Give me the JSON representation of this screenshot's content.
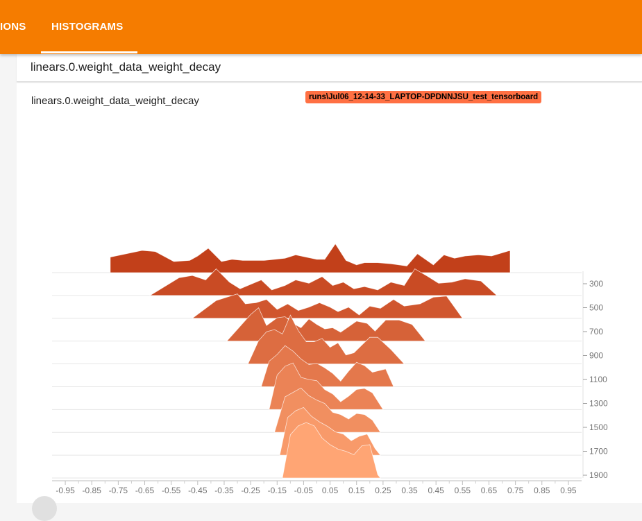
{
  "tabs": [
    {
      "label": "IONS"
    },
    {
      "label": "HISTOGRAMS"
    }
  ],
  "tag_header": {
    "text": "linears.0.weight_data_weight_decay"
  },
  "card": {
    "title": "linears.0.weight_data_weight_decay",
    "run_label": "runs\\Jul06_12-14-33_LAPTOP-DPDNNJSU_test_tensorboard"
  },
  "colors": {
    "topbar": "#f57c00",
    "badge": "#ff7043",
    "oldest_step": "#c2401a",
    "newest_step": "#ffa574"
  },
  "chart_data": {
    "type": "area",
    "mode": "offset",
    "x_ticks": [
      -0.95,
      -0.85,
      -0.75,
      -0.65,
      -0.55,
      -0.45,
      -0.35,
      -0.25,
      -0.15,
      -0.05,
      0.05,
      0.15,
      0.25,
      0.35,
      0.45,
      0.55,
      0.65,
      0.75,
      0.85,
      0.95
    ],
    "x_tick_labels": [
      "-0.95",
      "-0.85",
      "-0.75",
      "-0.65",
      "-0.55",
      "-0.45",
      "-0.35",
      "-0.25",
      "-0.15",
      "-0.05",
      "0.05",
      "0.15",
      "0.25",
      "0.35",
      "0.45",
      "0.55",
      "0.65",
      "0.75",
      "0.85",
      "0.95"
    ],
    "xlim": [
      -1.0,
      1.0
    ],
    "step_ticks": [
      300,
      500,
      700,
      900,
      1100,
      1300,
      1500,
      1700,
      1900
    ],
    "step_tick_labels": [
      "300",
      "500",
      "700",
      "900",
      "1100",
      "1300",
      "1500",
      "1700",
      "1900"
    ],
    "series": [
      {
        "step": 100,
        "points": [
          [
            -0.78,
            0
          ],
          [
            -0.78,
            0.14
          ],
          [
            -0.66,
            0.2
          ],
          [
            -0.61,
            0.19
          ],
          [
            -0.54,
            0.1
          ],
          [
            -0.48,
            0.11
          ],
          [
            -0.45,
            0.15
          ],
          [
            -0.41,
            0.22
          ],
          [
            -0.36,
            0.1
          ],
          [
            -0.32,
            0.12
          ],
          [
            -0.28,
            0.11
          ],
          [
            -0.2,
            0.11
          ],
          [
            -0.12,
            0.13
          ],
          [
            -0.08,
            0.16
          ],
          [
            -0.04,
            0.14
          ],
          [
            0,
            0.12
          ],
          [
            0.03,
            0.12
          ],
          [
            0.07,
            0.26
          ],
          [
            0.11,
            0.11
          ],
          [
            0.15,
            0.07
          ],
          [
            0.18,
            0.09
          ],
          [
            0.23,
            0.09
          ],
          [
            0.28,
            0.08
          ],
          [
            0.34,
            0.06
          ],
          [
            0.38,
            0.17
          ],
          [
            0.44,
            0.07
          ],
          [
            0.48,
            0.16
          ],
          [
            0.52,
            0.13
          ],
          [
            0.56,
            0.15
          ],
          [
            0.61,
            0.16
          ],
          [
            0.66,
            0.15
          ],
          [
            0.73,
            0.2
          ],
          [
            0.73,
            0
          ]
        ]
      },
      {
        "step": 300,
        "points": [
          [
            -0.63,
            0
          ],
          [
            -0.52,
            0.16
          ],
          [
            -0.47,
            0.18
          ],
          [
            -0.42,
            0.14
          ],
          [
            -0.38,
            0.24
          ],
          [
            -0.33,
            0.12
          ],
          [
            -0.29,
            0.06
          ],
          [
            -0.25,
            0.1
          ],
          [
            -0.21,
            0.14
          ],
          [
            -0.17,
            0.05
          ],
          [
            -0.12,
            0.09
          ],
          [
            -0.08,
            0.14
          ],
          [
            -0.03,
            0.11
          ],
          [
            0.02,
            0.17
          ],
          [
            0.06,
            0.09
          ],
          [
            0.1,
            0.12
          ],
          [
            0.14,
            0.06
          ],
          [
            0.18,
            0.08
          ],
          [
            0.23,
            0.05
          ],
          [
            0.28,
            0.12
          ],
          [
            0.33,
            0.09
          ],
          [
            0.37,
            0.24
          ],
          [
            0.42,
            0.17
          ],
          [
            0.46,
            0.11
          ],
          [
            0.51,
            0.12
          ],
          [
            0.56,
            0.15
          ],
          [
            0.62,
            0.13
          ],
          [
            0.68,
            0
          ]
        ]
      },
      {
        "step": 500,
        "points": [
          [
            -0.47,
            0
          ],
          [
            -0.38,
            0.16
          ],
          [
            -0.34,
            0.19
          ],
          [
            -0.3,
            0.22
          ],
          [
            -0.27,
            0.13
          ],
          [
            -0.23,
            0.14
          ],
          [
            -0.19,
            0.17
          ],
          [
            -0.15,
            0.08
          ],
          [
            -0.11,
            0.13
          ],
          [
            -0.07,
            0.07
          ],
          [
            -0.03,
            0.1
          ],
          [
            0.01,
            0.14
          ],
          [
            0.05,
            0.1
          ],
          [
            0.08,
            0.06
          ],
          [
            0.12,
            0.1
          ],
          [
            0.16,
            0.03
          ],
          [
            0.2,
            0.11
          ],
          [
            0.24,
            0.09
          ],
          [
            0.29,
            0.17
          ],
          [
            0.33,
            0.11
          ],
          [
            0.39,
            0.13
          ],
          [
            0.44,
            0.19
          ],
          [
            0.49,
            0.2
          ],
          [
            0.55,
            0
          ]
        ]
      },
      {
        "step": 700,
        "points": [
          [
            -0.34,
            0
          ],
          [
            -0.28,
            0.16
          ],
          [
            -0.25,
            0.24
          ],
          [
            -0.22,
            0.3
          ],
          [
            -0.19,
            0.14
          ],
          [
            -0.15,
            0.21
          ],
          [
            -0.12,
            0.22
          ],
          [
            -0.09,
            0.16
          ],
          [
            -0.06,
            0.12
          ],
          [
            -0.03,
            0.2
          ],
          [
            0,
            0.15
          ],
          [
            0.03,
            0.11
          ],
          [
            0.06,
            0.12
          ],
          [
            0.09,
            0.08
          ],
          [
            0.12,
            0.13
          ],
          [
            0.15,
            0.18
          ],
          [
            0.19,
            0.16
          ],
          [
            0.22,
            0.09
          ],
          [
            0.26,
            0.19
          ],
          [
            0.31,
            0.19
          ],
          [
            0.36,
            0.15
          ],
          [
            0.41,
            0
          ]
        ]
      },
      {
        "step": 900,
        "points": [
          [
            -0.26,
            0
          ],
          [
            -0.22,
            0.21
          ],
          [
            -0.19,
            0.29
          ],
          [
            -0.16,
            0.31
          ],
          [
            -0.13,
            0.27
          ],
          [
            -0.1,
            0.44
          ],
          [
            -0.07,
            0.3
          ],
          [
            -0.04,
            0.2
          ],
          [
            -0.01,
            0.2
          ],
          [
            0.02,
            0.23
          ],
          [
            0.05,
            0.15
          ],
          [
            0.08,
            0.19
          ],
          [
            0.11,
            0.08
          ],
          [
            0.14,
            0.1
          ],
          [
            0.17,
            0.17
          ],
          [
            0.2,
            0.24
          ],
          [
            0.23,
            0.24
          ],
          [
            0.28,
            0.13
          ],
          [
            0.33,
            0
          ]
        ]
      },
      {
        "step": 1100,
        "points": [
          [
            -0.21,
            0
          ],
          [
            -0.18,
            0.23
          ],
          [
            -0.15,
            0.29
          ],
          [
            -0.12,
            0.37
          ],
          [
            -0.09,
            0.32
          ],
          [
            -0.06,
            0.25
          ],
          [
            -0.03,
            0.2
          ],
          [
            0,
            0.21
          ],
          [
            0.03,
            0.17
          ],
          [
            0.06,
            0.12
          ],
          [
            0.09,
            0.05
          ],
          [
            0.12,
            0.14
          ],
          [
            0.15,
            0.22
          ],
          [
            0.18,
            0.19
          ],
          [
            0.21,
            0.13
          ],
          [
            0.26,
            0.16
          ],
          [
            0.29,
            0
          ]
        ]
      },
      {
        "step": 1300,
        "points": [
          [
            -0.18,
            0
          ],
          [
            -0.15,
            0.31
          ],
          [
            -0.12,
            0.39
          ],
          [
            -0.09,
            0.42
          ],
          [
            -0.06,
            0.29
          ],
          [
            -0.03,
            0.27
          ],
          [
            0,
            0.26
          ],
          [
            0.03,
            0.18
          ],
          [
            0.06,
            0.14
          ],
          [
            0.09,
            0.07
          ],
          [
            0.12,
            0.12
          ],
          [
            0.15,
            0.18
          ],
          [
            0.18,
            0.19
          ],
          [
            0.21,
            0.15
          ],
          [
            0.25,
            0
          ]
        ]
      },
      {
        "step": 1500,
        "points": [
          [
            -0.16,
            0
          ],
          [
            -0.12,
            0.32
          ],
          [
            -0.09,
            0.36
          ],
          [
            -0.06,
            0.4
          ],
          [
            -0.03,
            0.33
          ],
          [
            0,
            0.29
          ],
          [
            0.03,
            0.26
          ],
          [
            0.06,
            0.18
          ],
          [
            0.09,
            0.16
          ],
          [
            0.12,
            0.12
          ],
          [
            0.15,
            0.17
          ],
          [
            0.18,
            0.16
          ],
          [
            0.21,
            0.11
          ],
          [
            0.24,
            0
          ]
        ]
      },
      {
        "step": 1700,
        "points": [
          [
            -0.14,
            0
          ],
          [
            -0.11,
            0.34
          ],
          [
            -0.08,
            0.4
          ],
          [
            -0.05,
            0.43
          ],
          [
            -0.02,
            0.35
          ],
          [
            0.01,
            0.3
          ],
          [
            0.04,
            0.26
          ],
          [
            0.07,
            0.21
          ],
          [
            0.1,
            0.19
          ],
          [
            0.13,
            0.13
          ],
          [
            0.16,
            0.17
          ],
          [
            0.19,
            0.19
          ],
          [
            0.22,
            0.06
          ],
          [
            0.24,
            0
          ]
        ]
      },
      {
        "step": 1900,
        "points": [
          [
            -0.13,
            0
          ],
          [
            -0.1,
            0.39
          ],
          [
            -0.07,
            0.47
          ],
          [
            -0.04,
            0.5
          ],
          [
            -0.01,
            0.47
          ],
          [
            0.02,
            0.36
          ],
          [
            0.05,
            0.3
          ],
          [
            0.08,
            0.26
          ],
          [
            0.11,
            0.24
          ],
          [
            0.14,
            0.21
          ],
          [
            0.17,
            0.29
          ],
          [
            0.2,
            0.3
          ],
          [
            0.23,
            0.03
          ],
          [
            0.24,
            0
          ]
        ]
      }
    ]
  }
}
